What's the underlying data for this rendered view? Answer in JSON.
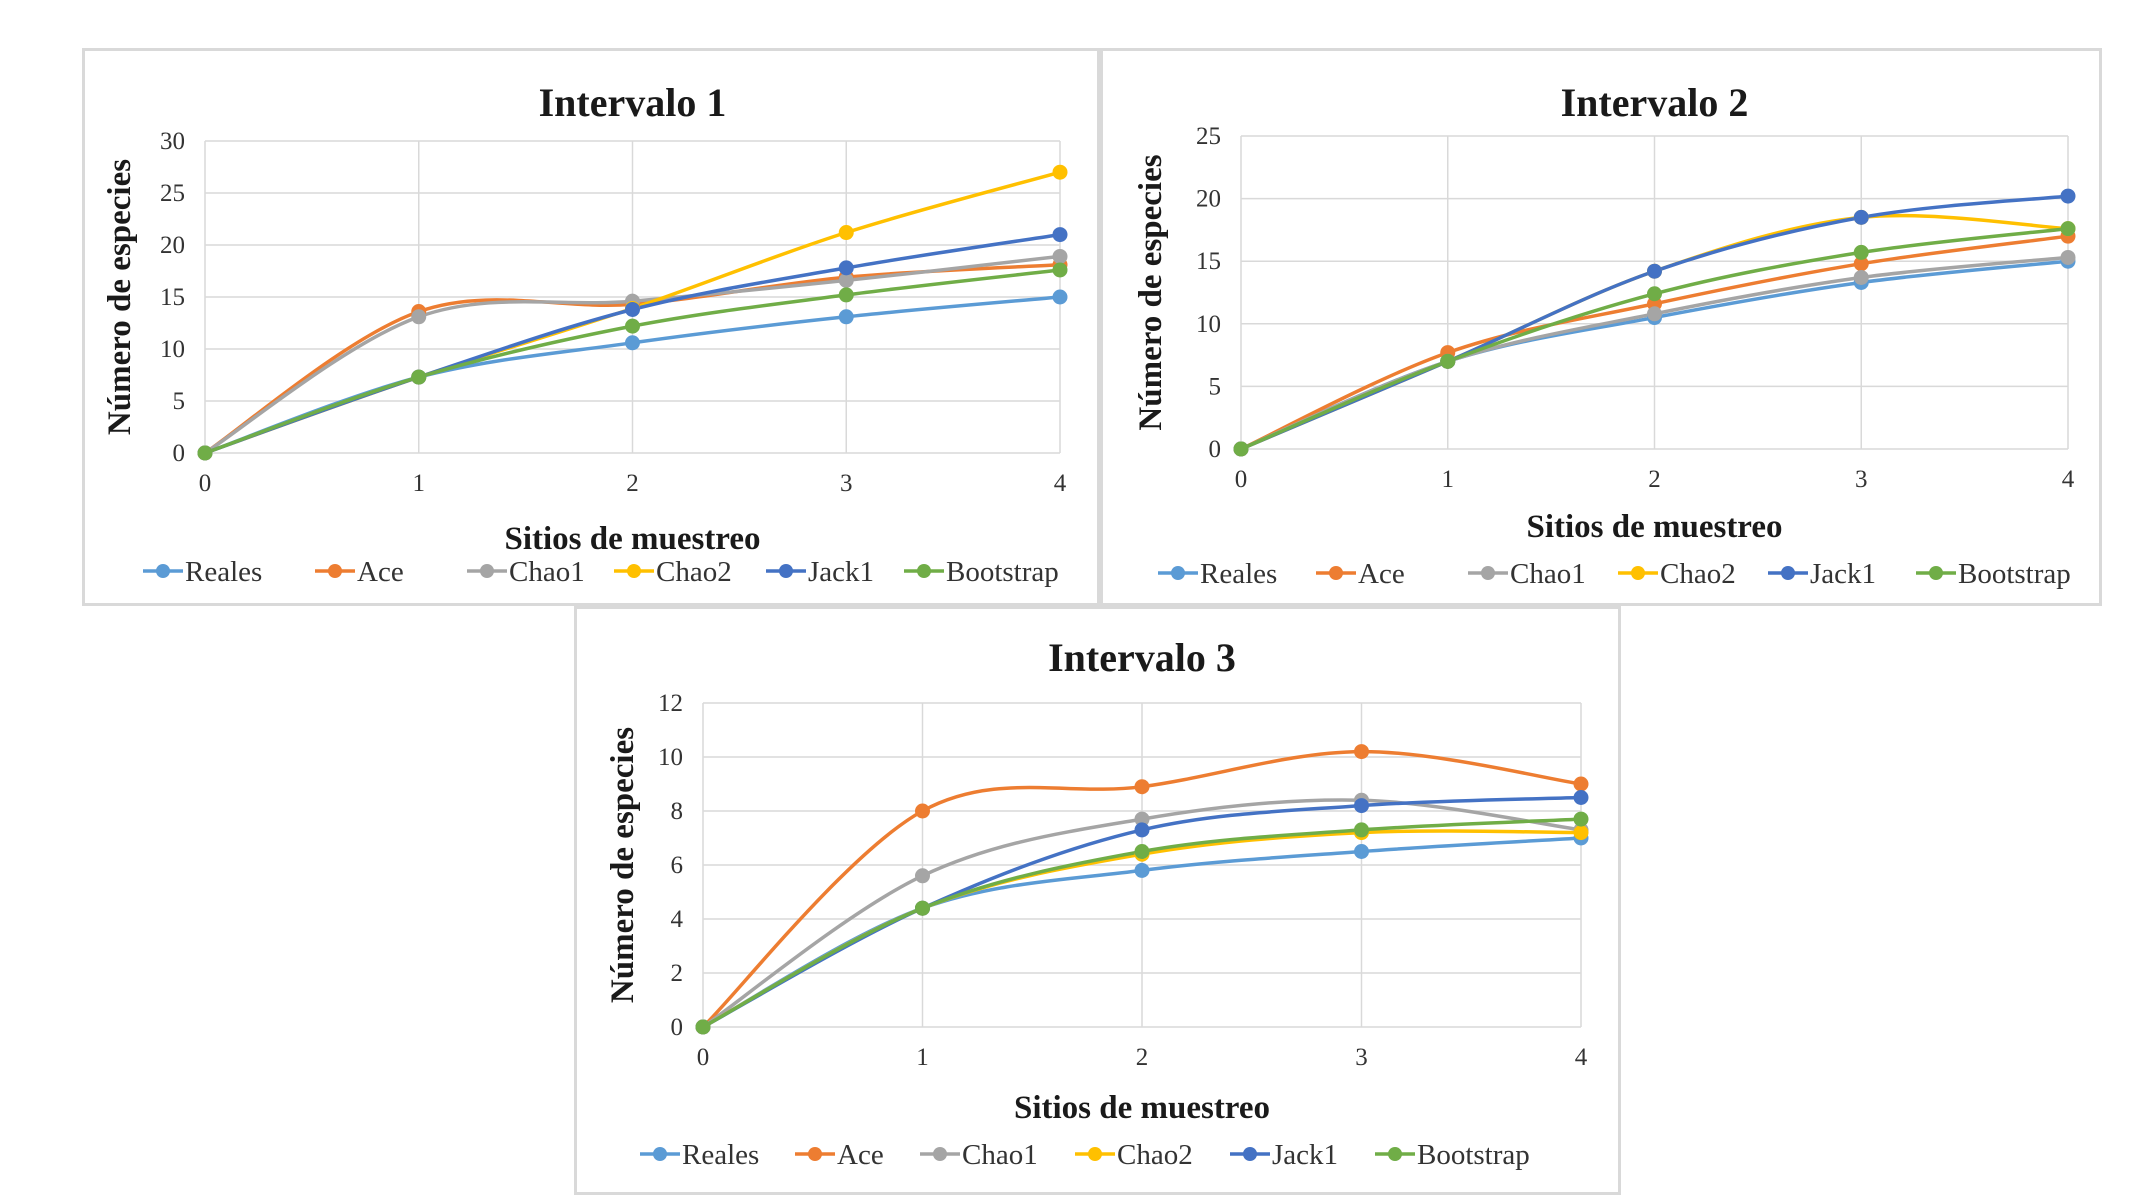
{
  "colors": {
    "Reales": "#5B9BD5",
    "Ace": "#ED7D31",
    "Chao1": "#A5A5A5",
    "Chao2": "#FFC000",
    "Jack1": "#4472C4",
    "Bootstrap": "#70AD47",
    "grid": "#d9d9d9"
  },
  "chart_data": [
    {
      "type": "line",
      "title": "Intervalo 1",
      "xlabel": "Sitios de muestreo",
      "ylabel": "Número de especies",
      "x": [
        0,
        1,
        2,
        3,
        4
      ],
      "ylim": [
        0,
        30
      ],
      "yticks": [
        0,
        5,
        10,
        15,
        20,
        25,
        30
      ],
      "legend_position": "bottom",
      "series": [
        {
          "name": "Reales",
          "values": [
            0,
            7.3,
            10.6,
            13.1,
            15.0
          ]
        },
        {
          "name": "Ace",
          "values": [
            0,
            13.6,
            14.3,
            16.9,
            18.1
          ]
        },
        {
          "name": "Chao1",
          "values": [
            0,
            13.1,
            14.6,
            16.6,
            18.9
          ]
        },
        {
          "name": "Chao2",
          "values": [
            0,
            7.3,
            13.9,
            21.2,
            27.0
          ]
        },
        {
          "name": "Jack1",
          "values": [
            0,
            7.3,
            13.8,
            17.8,
            21.0
          ]
        },
        {
          "name": "Bootstrap",
          "values": [
            0,
            7.3,
            12.2,
            15.2,
            17.6
          ]
        }
      ]
    },
    {
      "type": "line",
      "title": "Intervalo 2",
      "xlabel": "Sitios de muestreo",
      "ylabel": "Número de especies",
      "x": [
        0,
        1,
        2,
        3,
        4
      ],
      "ylim": [
        0,
        25
      ],
      "yticks": [
        0,
        5,
        10,
        15,
        20,
        25
      ],
      "legend_position": "bottom",
      "series": [
        {
          "name": "Reales",
          "values": [
            0,
            7.0,
            10.5,
            13.3,
            15.0
          ]
        },
        {
          "name": "Ace",
          "values": [
            0,
            7.7,
            11.6,
            14.8,
            17.0
          ]
        },
        {
          "name": "Chao1",
          "values": [
            0,
            7.0,
            10.8,
            13.7,
            15.3
          ]
        },
        {
          "name": "Chao2",
          "values": [
            0,
            7.0,
            14.2,
            18.5,
            17.6
          ]
        },
        {
          "name": "Jack1",
          "values": [
            0,
            7.0,
            14.2,
            18.5,
            20.2
          ]
        },
        {
          "name": "Bootstrap",
          "values": [
            0,
            7.0,
            12.4,
            15.7,
            17.6
          ]
        }
      ]
    },
    {
      "type": "line",
      "title": "Intervalo 3",
      "xlabel": "Sitios de muestreo",
      "ylabel": "Número de especies",
      "x": [
        0,
        1,
        2,
        3,
        4
      ],
      "ylim": [
        0,
        12
      ],
      "yticks": [
        0,
        2,
        4,
        6,
        8,
        10,
        12
      ],
      "legend_position": "bottom",
      "series": [
        {
          "name": "Reales",
          "values": [
            0,
            4.4,
            5.8,
            6.5,
            7.0
          ]
        },
        {
          "name": "Ace",
          "values": [
            0,
            8.0,
            8.9,
            10.2,
            9.0
          ]
        },
        {
          "name": "Chao1",
          "values": [
            0,
            5.6,
            7.7,
            8.4,
            7.3
          ]
        },
        {
          "name": "Chao2",
          "values": [
            0,
            4.4,
            6.4,
            7.2,
            7.2
          ]
        },
        {
          "name": "Jack1",
          "values": [
            0,
            4.4,
            7.3,
            8.2,
            8.5
          ]
        },
        {
          "name": "Bootstrap",
          "values": [
            0,
            4.4,
            6.5,
            7.3,
            7.7
          ]
        }
      ]
    }
  ]
}
